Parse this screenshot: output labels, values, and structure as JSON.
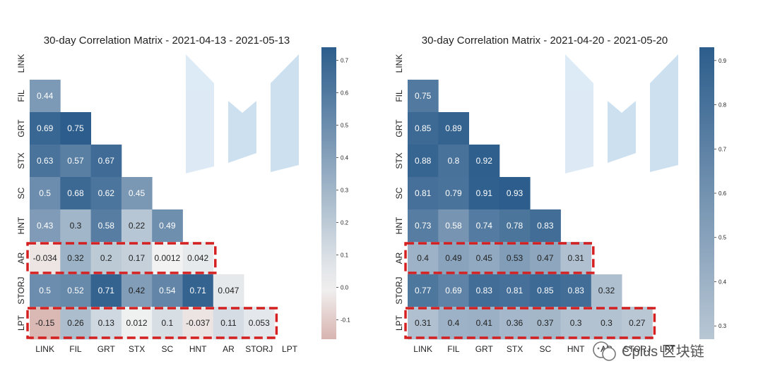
{
  "chart_data": [
    {
      "type": "heatmap",
      "title": "30-day Correlation Matrix - 2021-04-13 - 2021-05-13",
      "labels": [
        "LINK",
        "FIL",
        "GRT",
        "STX",
        "SC",
        "HNT",
        "AR",
        "STORJ",
        "LPT"
      ],
      "matrix": [
        [],
        [
          "0.44"
        ],
        [
          "0.69",
          "0.75"
        ],
        [
          "0.63",
          "0.57",
          "0.67"
        ],
        [
          "0.5",
          "0.68",
          "0.62",
          "0.45"
        ],
        [
          "0.43",
          "0.3",
          "0.58",
          "0.22",
          "0.49"
        ],
        [
          "-0.034",
          "0.32",
          "0.2",
          "0.17",
          "0.0012",
          "0.042"
        ],
        [
          "0.5",
          "0.52",
          "0.71",
          "0.42",
          "0.54",
          "0.71",
          "0.047"
        ],
        [
          "-0.15",
          "0.26",
          "0.13",
          "0.012",
          "0.1",
          "-0.037",
          "0.11",
          "0.053"
        ]
      ],
      "colorbar": {
        "min": -0.16,
        "max": 0.74,
        "ticks": [
          "0.7",
          "0.6",
          "0.5",
          "0.4",
          "0.3",
          "0.2",
          "0.1",
          "0.0",
          "-0.1"
        ]
      },
      "highlighted_rows": [
        "AR",
        "LPT"
      ],
      "highlight_color": "#d42020"
    },
    {
      "type": "heatmap",
      "title": "30-day Correlation Matrix - 2021-04-20 - 2021-05-20",
      "labels": [
        "LINK",
        "FIL",
        "GRT",
        "STX",
        "SC",
        "HNT",
        "AR",
        "STORJ",
        "LPT"
      ],
      "matrix": [
        [],
        [
          "0.75"
        ],
        [
          "0.85",
          "0.89"
        ],
        [
          "0.88",
          "0.8",
          "0.92"
        ],
        [
          "0.81",
          "0.79",
          "0.91",
          "0.93"
        ],
        [
          "0.73",
          "0.58",
          "0.74",
          "0.78",
          "0.83"
        ],
        [
          "0.4",
          "0.49",
          "0.45",
          "0.53",
          "0.47",
          "0.31"
        ],
        [
          "0.77",
          "0.69",
          "0.83",
          "0.81",
          "0.85",
          "0.83",
          "0.32"
        ],
        [
          "0.31",
          "0.4",
          "0.41",
          "0.36",
          "0.37",
          "0.3",
          "0.3",
          "0.27"
        ]
      ],
      "colorbar": {
        "min": 0.27,
        "max": 0.93,
        "ticks": [
          "0.9",
          "0.8",
          "0.7",
          "0.6",
          "0.5",
          "0.4",
          "0.3"
        ]
      },
      "highlighted_rows": [
        "AR",
        "LPT"
      ],
      "highlight_color": "#d42020"
    }
  ],
  "colors": {
    "positive_max": "#2c5d8c",
    "neutral": "#f2f2f2",
    "negative_max": "#d8b4b0",
    "logo": "#b7d3ea"
  },
  "watermark": {
    "text": "Cplus 区块链",
    "icon": "wechat-icon"
  }
}
